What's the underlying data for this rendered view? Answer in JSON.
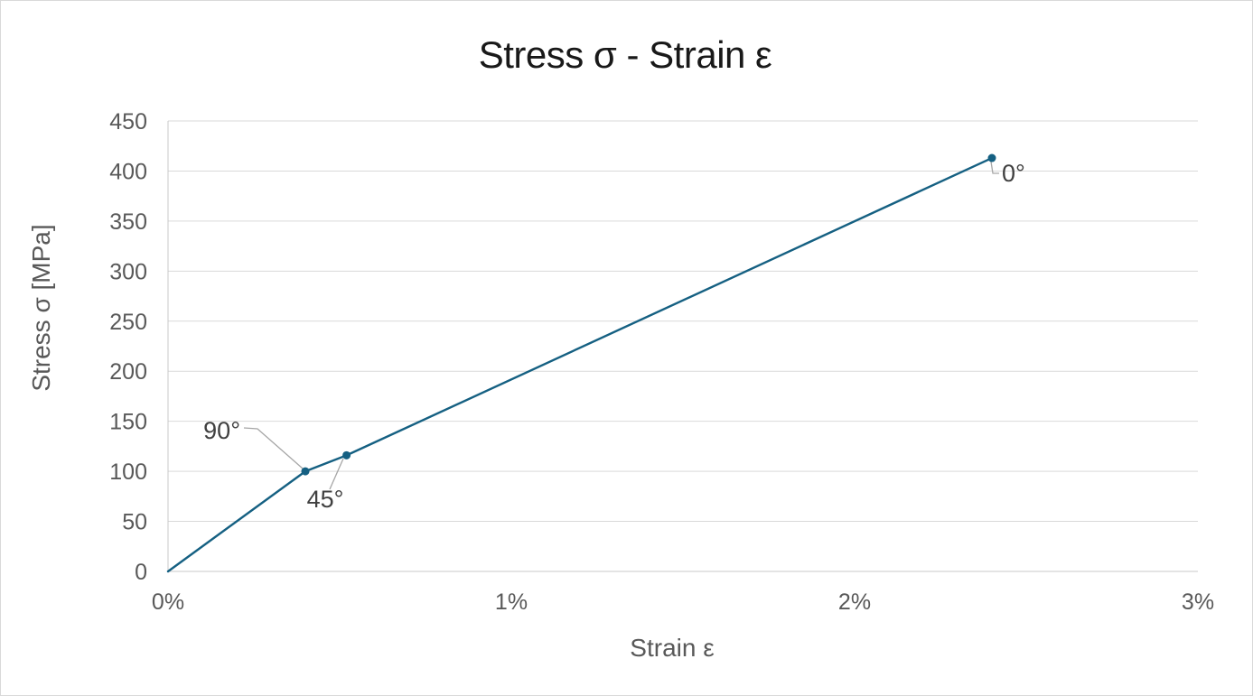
{
  "chart": {
    "title": "Stress σ - Strain ε",
    "y_axis": {
      "title": "Stress σ [MPa]"
    },
    "x_axis": {
      "title": "Strain ε"
    }
  },
  "chart_data": {
    "type": "line",
    "title": "Stress σ - Strain ε",
    "xlabel": "Strain ε",
    "ylabel": "Stress σ [MPa]",
    "x_axis": {
      "range": [
        0,
        3
      ],
      "tick_values": [
        0,
        1,
        2,
        3
      ],
      "tick_labels": [
        "0%",
        "1%",
        "2%",
        "3%"
      ]
    },
    "y_axis": {
      "range": [
        0,
        450
      ],
      "tick_values": [
        0,
        50,
        100,
        150,
        200,
        250,
        300,
        350,
        400,
        450
      ],
      "tick_labels": [
        "0",
        "50",
        "100",
        "150",
        "200",
        "250",
        "300",
        "350",
        "400",
        "450"
      ]
    },
    "grid": "horizontal-only",
    "legend": "none",
    "series": [
      {
        "name": "stress-strain-curve",
        "color": "#156082",
        "marker": "circle",
        "points": [
          {
            "strain_pct": 0,
            "stress_mpa": 0,
            "label": null,
            "marker": false
          },
          {
            "strain_pct": 0.4,
            "stress_mpa": 100,
            "label": "90°",
            "marker": true
          },
          {
            "strain_pct": 0.52,
            "stress_mpa": 116,
            "label": "45°",
            "marker": true
          },
          {
            "strain_pct": 2.4,
            "stress_mpa": 413,
            "label": "0°",
            "marker": true
          }
        ]
      }
    ],
    "annotations": [
      {
        "text": "90°",
        "attached_to": {
          "strain_pct": 0.4,
          "stress_mpa": 100
        }
      },
      {
        "text": "45°",
        "attached_to": {
          "strain_pct": 0.52,
          "stress_mpa": 116
        }
      },
      {
        "text": "0°",
        "attached_to": {
          "strain_pct": 2.4,
          "stress_mpa": 413
        }
      }
    ],
    "colors": {
      "series_line": "#156082",
      "marker_fill": "#156082",
      "gridline": "#d9d9d9",
      "axis_line": "#c9c9c9",
      "leader_line": "#a6a6a6",
      "tick_text": "#595959",
      "data_label_text": "#404040",
      "title_text": "#191919"
    }
  }
}
